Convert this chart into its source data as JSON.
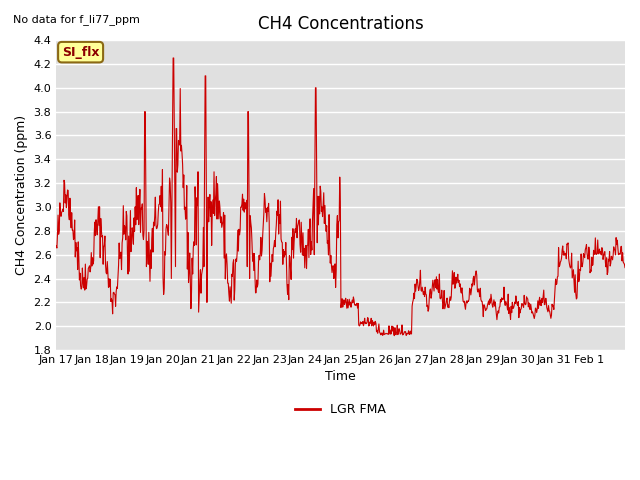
{
  "title": "CH4 Concentrations",
  "xlabel": "Time",
  "ylabel": "CH4 Concentration (ppm)",
  "ylim": [
    1.8,
    4.4
  ],
  "no_data_text": "No data for f_li77_ppm",
  "si_flx_label": "SI_flx",
  "legend_label": "LGR FMA",
  "line_color": "#cc0000",
  "bg_color": "#e0e0e0",
  "fig_bg_color": "#ffffff",
  "tick_labels": [
    "Jan 17",
    "Jan 18",
    "Jan 19",
    "Jan 20",
    "Jan 21",
    "Jan 22",
    "Jan 23",
    "Jan 24",
    "Jan 25",
    "Jan 26",
    "Jan 27",
    "Jan 28",
    "Jan 29",
    "Jan 30",
    "Jan 31",
    "Feb 1",
    ""
  ],
  "tick_positions": [
    0,
    1,
    2,
    3,
    4,
    5,
    6,
    7,
    8,
    9,
    10,
    11,
    12,
    13,
    14,
    15,
    16
  ],
  "yticks": [
    1.8,
    2.0,
    2.2,
    2.4,
    2.6,
    2.8,
    3.0,
    3.2,
    3.4,
    3.6,
    3.8,
    4.0,
    4.2,
    4.4
  ]
}
